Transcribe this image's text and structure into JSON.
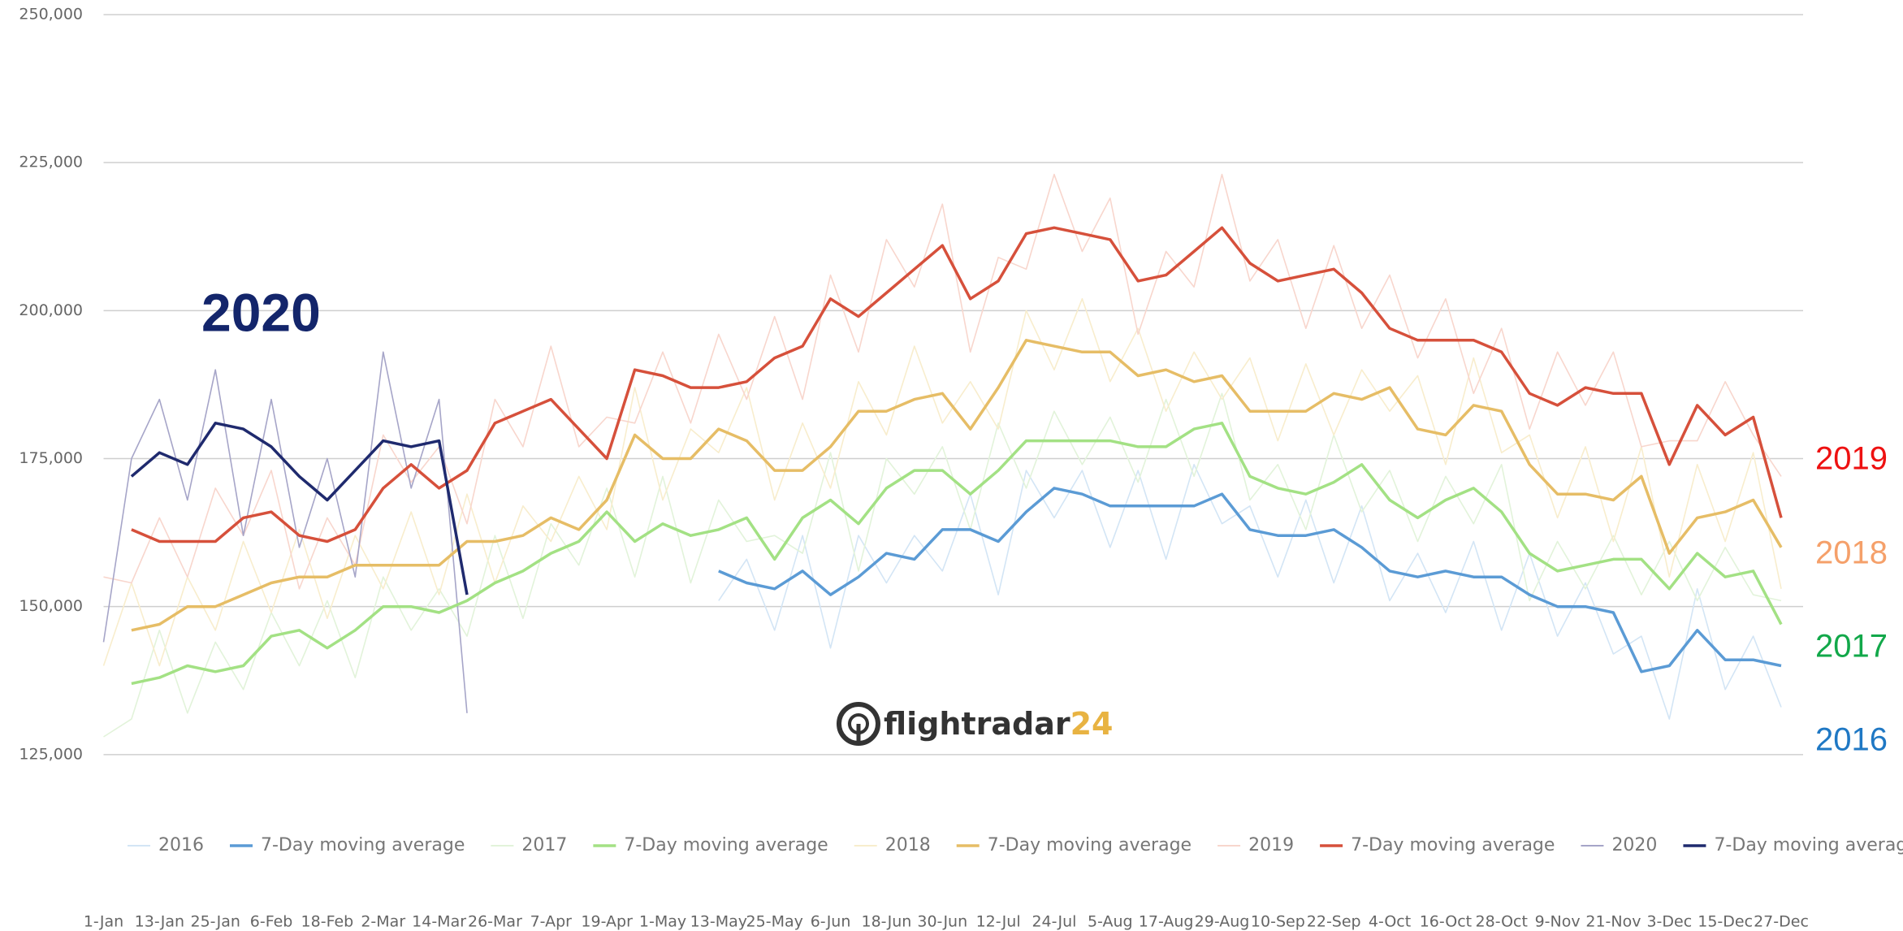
{
  "chart_data": {
    "type": "line",
    "categories": [
      "1-Jan",
      null,
      "13-Jan",
      null,
      "25-Jan",
      null,
      "6-Feb",
      null,
      "18-Feb",
      null,
      "2-Mar",
      null,
      "14-Mar",
      null,
      "26-Mar",
      null,
      "7-Apr",
      null,
      "19-Apr",
      null,
      "1-May",
      null,
      "13-May",
      null,
      "25-May",
      null,
      "6-Jun",
      null,
      "18-Jun",
      null,
      "30-Jun",
      null,
      "12-Jul",
      null,
      "24-Jul",
      null,
      "5-Aug",
      null,
      "17-Aug",
      null,
      "29-Aug",
      null,
      "10-Sep",
      null,
      "22-Sep",
      null,
      "4-Oct",
      null,
      "16-Oct",
      null,
      "28-Oct",
      null,
      "9-Nov",
      null,
      "21-Nov",
      null,
      "3-Dec",
      null,
      "15-Dec",
      null,
      "27-Dec"
    ],
    "series": [
      {
        "name": "2016",
        "color": "#d3e5f5",
        "width": "raw",
        "values": [
          null,
          null,
          null,
          null,
          null,
          null,
          null,
          null,
          null,
          null,
          null,
          null,
          null,
          null,
          null,
          null,
          null,
          null,
          null,
          null,
          null,
          null,
          151000,
          158000,
          146000,
          162000,
          143000,
          162000,
          154000,
          162000,
          156000,
          169000,
          152000,
          173000,
          165000,
          173000,
          160000,
          173000,
          158000,
          174000,
          164000,
          167000,
          155000,
          168000,
          154000,
          167000,
          151000,
          159000,
          149000,
          161000,
          146000,
          159000,
          145000,
          154000,
          142000,
          145000,
          131000,
          153000,
          136000,
          145000,
          133000
        ]
      },
      {
        "name": "7-Day moving average",
        "color": "#5b9bd5",
        "width": "avg",
        "values": [
          null,
          null,
          null,
          null,
          null,
          null,
          null,
          null,
          null,
          null,
          null,
          null,
          null,
          null,
          null,
          null,
          null,
          null,
          null,
          null,
          null,
          null,
          156000,
          154000,
          153000,
          156000,
          152000,
          155000,
          159000,
          158000,
          163000,
          163000,
          161000,
          166000,
          170000,
          169000,
          167000,
          167000,
          167000,
          167000,
          169000,
          163000,
          162000,
          162000,
          163000,
          160000,
          156000,
          155000,
          156000,
          155000,
          155000,
          152000,
          150000,
          150000,
          149000,
          139000,
          140000,
          146000,
          141000,
          141000,
          140000
        ]
      },
      {
        "name": "2017",
        "color": "#e2f3da",
        "width": "raw",
        "values": [
          128000,
          131000,
          146000,
          132000,
          144000,
          136000,
          149000,
          140000,
          151000,
          138000,
          155000,
          146000,
          153000,
          145000,
          162000,
          148000,
          164000,
          157000,
          170000,
          155000,
          172000,
          154000,
          168000,
          161000,
          162000,
          159000,
          176000,
          156000,
          175000,
          169000,
          177000,
          163000,
          181000,
          170000,
          183000,
          174000,
          182000,
          171000,
          185000,
          172000,
          186000,
          168000,
          174000,
          163000,
          179000,
          166000,
          173000,
          161000,
          172000,
          164000,
          174000,
          151000,
          161000,
          153000,
          162000,
          152000,
          161000,
          151000,
          160000,
          152000,
          151000
        ]
      },
      {
        "name": "7-Day moving average",
        "color": "#a3e184",
        "width": "avg",
        "values": [
          null,
          137000,
          138000,
          140000,
          139000,
          140000,
          145000,
          146000,
          143000,
          146000,
          150000,
          150000,
          149000,
          151000,
          154000,
          156000,
          159000,
          161000,
          166000,
          161000,
          164000,
          162000,
          163000,
          165000,
          158000,
          165000,
          168000,
          164000,
          170000,
          173000,
          173000,
          169000,
          173000,
          178000,
          178000,
          178000,
          178000,
          177000,
          177000,
          180000,
          181000,
          172000,
          170000,
          169000,
          171000,
          174000,
          168000,
          165000,
          168000,
          170000,
          166000,
          159000,
          156000,
          157000,
          158000,
          158000,
          153000,
          159000,
          155000,
          156000,
          147000
        ]
      },
      {
        "name": "2018",
        "color": "#f8edcd",
        "width": "raw",
        "values": [
          140000,
          154000,
          140000,
          155000,
          146000,
          161000,
          149000,
          163000,
          148000,
          162000,
          153000,
          166000,
          152000,
          169000,
          154000,
          167000,
          161000,
          172000,
          163000,
          187000,
          168000,
          180000,
          176000,
          187000,
          168000,
          181000,
          170000,
          188000,
          179000,
          194000,
          181000,
          188000,
          180000,
          200000,
          190000,
          202000,
          188000,
          197000,
          183000,
          193000,
          185000,
          192000,
          178000,
          191000,
          179000,
          190000,
          183000,
          189000,
          174000,
          192000,
          176000,
          179000,
          165000,
          177000,
          161000,
          177000,
          155000,
          174000,
          161000,
          176000,
          153000
        ]
      },
      {
        "name": "7-Day moving average",
        "color": "#e6bd66",
        "width": "avg",
        "values": [
          null,
          146000,
          147000,
          150000,
          150000,
          152000,
          154000,
          155000,
          155000,
          157000,
          157000,
          157000,
          157000,
          161000,
          161000,
          162000,
          165000,
          163000,
          168000,
          179000,
          175000,
          175000,
          180000,
          178000,
          173000,
          173000,
          177000,
          183000,
          183000,
          185000,
          186000,
          180000,
          187000,
          195000,
          194000,
          193000,
          193000,
          189000,
          190000,
          188000,
          189000,
          183000,
          183000,
          183000,
          186000,
          185000,
          187000,
          180000,
          179000,
          184000,
          183000,
          174000,
          169000,
          169000,
          168000,
          172000,
          159000,
          165000,
          166000,
          168000,
          160000
        ]
      },
      {
        "name": "2019",
        "color": "#f8d6cd",
        "width": "raw",
        "values": [
          155000,
          154000,
          165000,
          155000,
          170000,
          162000,
          173000,
          153000,
          165000,
          157000,
          179000,
          171000,
          177000,
          164000,
          185000,
          177000,
          194000,
          177000,
          182000,
          181000,
          193000,
          181000,
          196000,
          185000,
          199000,
          185000,
          206000,
          193000,
          212000,
          204000,
          218000,
          193000,
          209000,
          207000,
          223000,
          210000,
          219000,
          196000,
          210000,
          204000,
          223000,
          205000,
          212000,
          197000,
          211000,
          197000,
          206000,
          192000,
          202000,
          186000,
          197000,
          180000,
          193000,
          184000,
          193000,
          177000,
          178000,
          178000,
          188000,
          179000,
          172000
        ]
      },
      {
        "name": "7-Day moving average",
        "color": "#d6503b",
        "width": "avg",
        "values": [
          null,
          163000,
          161000,
          161000,
          161000,
          165000,
          166000,
          162000,
          161000,
          163000,
          170000,
          174000,
          170000,
          173000,
          181000,
          183000,
          185000,
          180000,
          175000,
          190000,
          189000,
          187000,
          187000,
          188000,
          192000,
          194000,
          202000,
          199000,
          203000,
          207000,
          211000,
          202000,
          205000,
          213000,
          214000,
          213000,
          212000,
          205000,
          206000,
          210000,
          214000,
          208000,
          205000,
          206000,
          207000,
          203000,
          197000,
          195000,
          195000,
          195000,
          193000,
          186000,
          184000,
          187000,
          186000,
          186000,
          174000,
          184000,
          179000,
          182000,
          165000
        ]
      },
      {
        "name": "2020",
        "color": "#a6a5c8",
        "width": "raw",
        "values": [
          144000,
          175000,
          185000,
          168000,
          190000,
          162000,
          185000,
          160000,
          175000,
          155000,
          193000,
          170000,
          185000,
          132000,
          null,
          null,
          null,
          null,
          null,
          null,
          null,
          null,
          null,
          null,
          null,
          null,
          null,
          null,
          null,
          null,
          null,
          null,
          null,
          null,
          null,
          null,
          null,
          null,
          null,
          null,
          null,
          null,
          null,
          null,
          null,
          null,
          null,
          null,
          null,
          null,
          null,
          null,
          null,
          null,
          null,
          null,
          null,
          null,
          null,
          null,
          null
        ]
      },
      {
        "name": "7-Day moving average",
        "color": "#1f2a6e",
        "width": "avg",
        "values": [
          null,
          172000,
          176000,
          174000,
          181000,
          180000,
          177000,
          172000,
          168000,
          173000,
          178000,
          177000,
          178000,
          152000,
          null,
          null,
          null,
          null,
          null,
          null,
          null,
          null,
          null,
          null,
          null,
          null,
          null,
          null,
          null,
          null,
          null,
          null,
          null,
          null,
          null,
          null,
          null,
          null,
          null,
          null,
          null,
          null,
          null,
          null,
          null,
          null,
          null,
          null,
          null,
          null,
          null,
          null,
          null,
          null,
          null,
          null,
          null,
          null,
          null,
          null,
          null
        ]
      }
    ],
    "ylim": [
      100000,
      250000
    ],
    "yticks": [
      {
        "value": 125000,
        "label": "125,000"
      },
      {
        "value": 150000,
        "label": "150,000"
      },
      {
        "value": 175000,
        "label": "175,000"
      },
      {
        "value": 200000,
        "label": "200,000"
      },
      {
        "value": 225000,
        "label": "225,000"
      },
      {
        "value": 250000,
        "label": "250,000"
      }
    ],
    "grid": true,
    "legend": "bottom",
    "annotations": [
      {
        "text": "2020",
        "color": "#13256b"
      },
      {
        "text": "2019",
        "color": "#ee1111"
      },
      {
        "text": "2018",
        "color": "#f5a06a"
      },
      {
        "text": "2017",
        "color": "#12a84a"
      },
      {
        "text": "2016",
        "color": "#1f78c4"
      }
    ],
    "logo": {
      "text": "flightradar",
      "suffix": "24"
    }
  }
}
